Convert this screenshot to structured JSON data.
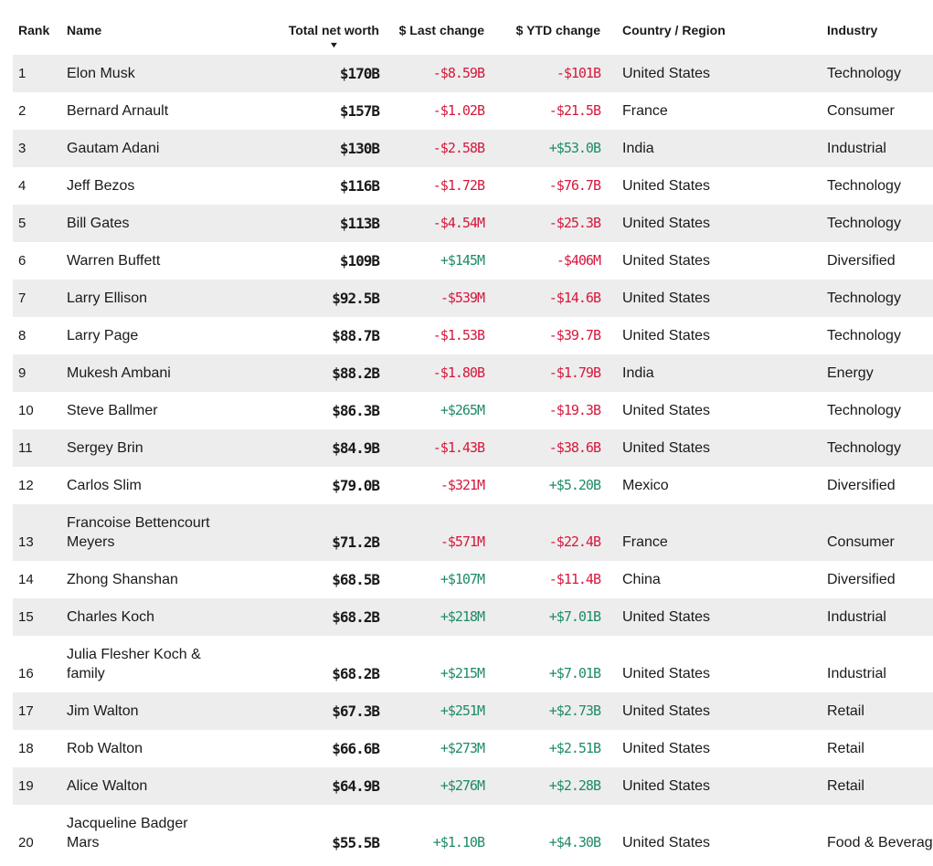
{
  "colors": {
    "negative": "#d5183d",
    "positive": "#1e8c64",
    "row_stripe": "#ededed",
    "text_primary": "#1a1a1a",
    "background": "#ffffff",
    "sort_icon": "#1a1a1a"
  },
  "table": {
    "sort_icon_glyph": "▼",
    "sorted_column": "Total net worth",
    "sort_direction": "descending",
    "columns": [
      {
        "label": "Rank"
      },
      {
        "label": "Name"
      },
      {
        "label": "Total net worth"
      },
      {
        "label": "$ Last change"
      },
      {
        "label": "$ YTD change"
      },
      {
        "label": "Country / Region"
      },
      {
        "label": "Industry"
      }
    ],
    "rows": [
      {
        "rank": "1",
        "name": "Elon Musk",
        "net_worth": "$170B",
        "last_change": "-$8.59B",
        "ytd_change": "-$101B",
        "country": "United States",
        "industry": "Technology"
      },
      {
        "rank": "2",
        "name": "Bernard Arnault",
        "net_worth": "$157B",
        "last_change": "-$1.02B",
        "ytd_change": "-$21.5B",
        "country": "France",
        "industry": "Consumer"
      },
      {
        "rank": "3",
        "name": "Gautam Adani",
        "net_worth": "$130B",
        "last_change": "-$2.58B",
        "ytd_change": "+$53.0B",
        "country": "India",
        "industry": "Industrial"
      },
      {
        "rank": "4",
        "name": "Jeff Bezos",
        "net_worth": "$116B",
        "last_change": "-$1.72B",
        "ytd_change": "-$76.7B",
        "country": "United States",
        "industry": "Technology"
      },
      {
        "rank": "5",
        "name": "Bill Gates",
        "net_worth": "$113B",
        "last_change": "-$4.54M",
        "ytd_change": "-$25.3B",
        "country": "United States",
        "industry": "Technology"
      },
      {
        "rank": "6",
        "name": "Warren Buffett",
        "net_worth": "$109B",
        "last_change": "+$145M",
        "ytd_change": "-$406M",
        "country": "United States",
        "industry": "Diversified"
      },
      {
        "rank": "7",
        "name": "Larry Ellison",
        "net_worth": "$92.5B",
        "last_change": "-$539M",
        "ytd_change": "-$14.6B",
        "country": "United States",
        "industry": "Technology"
      },
      {
        "rank": "8",
        "name": "Larry Page",
        "net_worth": "$88.7B",
        "last_change": "-$1.53B",
        "ytd_change": "-$39.7B",
        "country": "United States",
        "industry": "Technology"
      },
      {
        "rank": "9",
        "name": "Mukesh Ambani",
        "net_worth": "$88.2B",
        "last_change": "-$1.80B",
        "ytd_change": "-$1.79B",
        "country": "India",
        "industry": "Energy"
      },
      {
        "rank": "10",
        "name": "Steve Ballmer",
        "net_worth": "$86.3B",
        "last_change": "+$265M",
        "ytd_change": "-$19.3B",
        "country": "United States",
        "industry": "Technology"
      },
      {
        "rank": "11",
        "name": "Sergey Brin",
        "net_worth": "$84.9B",
        "last_change": "-$1.43B",
        "ytd_change": "-$38.6B",
        "country": "United States",
        "industry": "Technology"
      },
      {
        "rank": "12",
        "name": "Carlos Slim",
        "net_worth": "$79.0B",
        "last_change": "-$321M",
        "ytd_change": "+$5.20B",
        "country": "Mexico",
        "industry": "Diversified"
      },
      {
        "rank": "13",
        "name": "Francoise Bettencourt\nMeyers",
        "net_worth": "$71.2B",
        "last_change": "-$571M",
        "ytd_change": "-$22.4B",
        "country": "France",
        "industry": "Consumer"
      },
      {
        "rank": "14",
        "name": "Zhong Shanshan",
        "net_worth": "$68.5B",
        "last_change": "+$107M",
        "ytd_change": "-$11.4B",
        "country": "China",
        "industry": "Diversified"
      },
      {
        "rank": "15",
        "name": "Charles Koch",
        "net_worth": "$68.2B",
        "last_change": "+$218M",
        "ytd_change": "+$7.01B",
        "country": "United States",
        "industry": "Industrial"
      },
      {
        "rank": "16",
        "name": "Julia Flesher Koch &\nfamily",
        "net_worth": "$68.2B",
        "last_change": "+$215M",
        "ytd_change": "+$7.01B",
        "country": "United States",
        "industry": "Industrial"
      },
      {
        "rank": "17",
        "name": "Jim Walton",
        "net_worth": "$67.3B",
        "last_change": "+$251M",
        "ytd_change": "+$2.73B",
        "country": "United States",
        "industry": "Retail"
      },
      {
        "rank": "18",
        "name": "Rob Walton",
        "net_worth": "$66.6B",
        "last_change": "+$273M",
        "ytd_change": "+$2.51B",
        "country": "United States",
        "industry": "Retail"
      },
      {
        "rank": "19",
        "name": "Alice Walton",
        "net_worth": "$64.9B",
        "last_change": "+$276M",
        "ytd_change": "+$2.28B",
        "country": "United States",
        "industry": "Retail"
      },
      {
        "rank": "20",
        "name": "Jacqueline Badger\nMars",
        "net_worth": "$55.5B",
        "last_change": "+$1.10B",
        "ytd_change": "+$4.30B",
        "country": "United States",
        "industry": "Food & Beverage"
      }
    ]
  }
}
